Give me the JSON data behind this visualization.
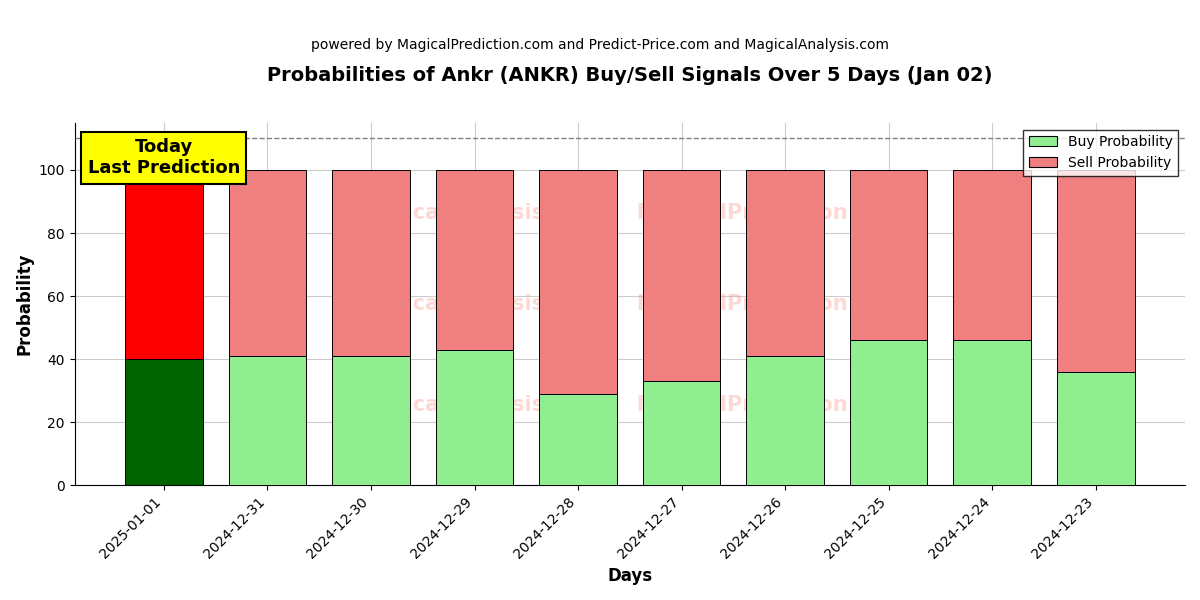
{
  "title": "Probabilities of Ankr (ANKR) Buy/Sell Signals Over 5 Days (Jan 02)",
  "subtitle": "powered by MagicalPrediction.com and Predict-Price.com and MagicalAnalysis.com",
  "xlabel": "Days",
  "ylabel": "Probability",
  "categories": [
    "2025-01-01",
    "2024-12-31",
    "2024-12-30",
    "2024-12-29",
    "2024-12-28",
    "2024-12-27",
    "2024-12-26",
    "2024-12-25",
    "2024-12-24",
    "2024-12-23"
  ],
  "buy_values": [
    40,
    41,
    41,
    43,
    29,
    33,
    41,
    46,
    46,
    36
  ],
  "sell_values": [
    60,
    59,
    59,
    57,
    71,
    67,
    59,
    54,
    54,
    64
  ],
  "buy_colors": [
    "#006400",
    "#90EE90",
    "#90EE90",
    "#90EE90",
    "#90EE90",
    "#90EE90",
    "#90EE90",
    "#90EE90",
    "#90EE90",
    "#90EE90"
  ],
  "sell_colors": [
    "#FF0000",
    "#F08080",
    "#F08080",
    "#F08080",
    "#F08080",
    "#F08080",
    "#F08080",
    "#F08080",
    "#F08080",
    "#F08080"
  ],
  "today_label": "Today\nLast Prediction",
  "ylim": [
    0,
    115
  ],
  "dashed_line_y": 110,
  "legend_buy_label": "Buy Probability",
  "legend_sell_label": "Sell Probability",
  "background_color": "#ffffff",
  "grid_color": "#cccccc",
  "watermark_color": "salmon",
  "watermark_alpha": 0.3
}
